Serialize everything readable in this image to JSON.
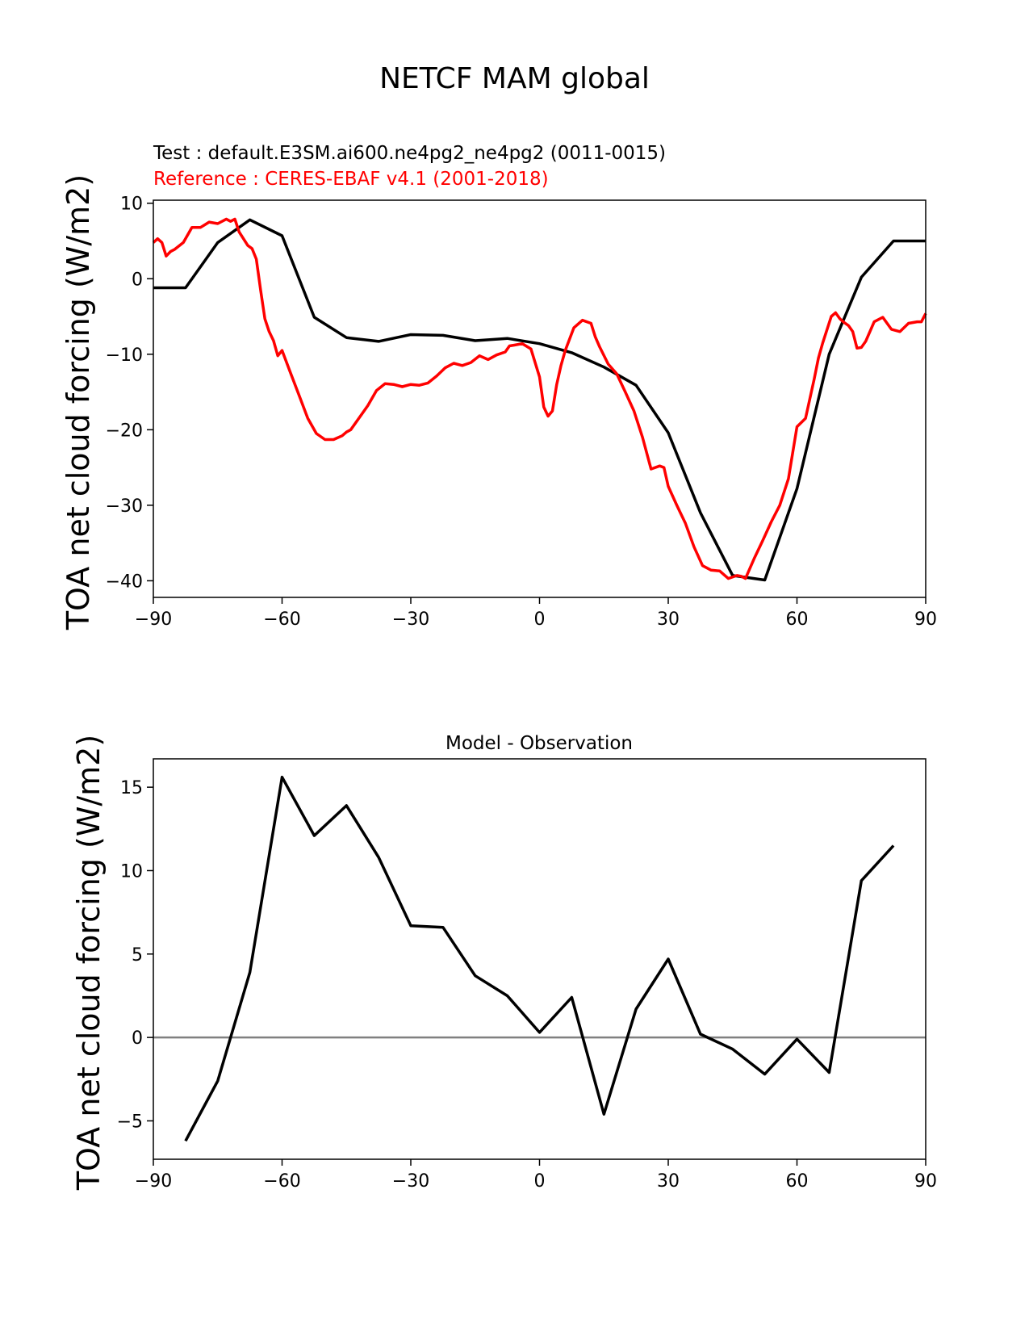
{
  "figure": {
    "title": "NETCF MAM global"
  },
  "chart_data": [
    {
      "type": "line",
      "test_label": "Test : default.E3SM.ai600.ne4pg2_ne4pg2 (0011-0015)",
      "reference_label": "Reference : CERES-EBAF v4.1 (2001-2018)",
      "ylabel": "TOA net cloud forcing (W/m2)",
      "xlabel": "",
      "xlim": [
        -90,
        90
      ],
      "ylim": [
        -42.2,
        10.4
      ],
      "xticks": [
        -90,
        -60,
        -30,
        0,
        30,
        60,
        90
      ],
      "xtick_labels": [
        "−90",
        "−60",
        "−30",
        "0",
        "30",
        "60",
        "90"
      ],
      "yticks": [
        -40,
        -30,
        -20,
        -10,
        0,
        10
      ],
      "ytick_labels": [
        "−40",
        "−30",
        "−20",
        "−10",
        "0",
        "10"
      ],
      "grid": false,
      "series": [
        {
          "name": "Test",
          "color": "#000000",
          "x": [
            -90,
            -82.5,
            -75,
            -67.5,
            -60,
            -52.5,
            -45,
            -37.5,
            -30,
            -22.5,
            -15,
            -7.5,
            0,
            7.5,
            15,
            22.5,
            30,
            37.5,
            45,
            52.5,
            60,
            67.5,
            75,
            82.5,
            90
          ],
          "y": [
            -1.2,
            -1.2,
            4.8,
            7.8,
            5.7,
            -5.1,
            -7.8,
            -8.3,
            -7.4,
            -7.5,
            -8.2,
            -7.9,
            -8.6,
            -9.8,
            -11.7,
            -14.1,
            -20.4,
            -31.0,
            -39.3,
            -39.9,
            -27.8,
            -10.0,
            0.2,
            5.0,
            5.0
          ]
        },
        {
          "name": "Reference",
          "color": "#ff0000",
          "x": [
            -90,
            -89,
            -88,
            -87,
            -86,
            -85,
            -83,
            -81,
            -79,
            -77,
            -75,
            -73,
            -72,
            -71,
            -70,
            -68,
            -67,
            -66,
            -65,
            -64,
            -63,
            -62,
            -61,
            -60,
            -58,
            -56,
            -54,
            -52,
            -50,
            -48,
            -46,
            -45,
            -44,
            -42,
            -40,
            -38,
            -36,
            -34,
            -32,
            -30,
            -28,
            -26,
            -24,
            -22,
            -20,
            -18,
            -16,
            -14,
            -12,
            -10,
            -8,
            -7,
            -6,
            -4,
            -2,
            0,
            1,
            2,
            3,
            4,
            5,
            6,
            8,
            10,
            12,
            13,
            14,
            16,
            18,
            20,
            22,
            24,
            26,
            28,
            29,
            30,
            32,
            34,
            36,
            38,
            40,
            42,
            44,
            46,
            47,
            48,
            50,
            52,
            54,
            56,
            58,
            60,
            62,
            64,
            65,
            66,
            68,
            69,
            70,
            71,
            72,
            73,
            74,
            75,
            76,
            78,
            80,
            82,
            84,
            86,
            88,
            89,
            90
          ],
          "y": [
            4.8,
            5.3,
            4.8,
            3.0,
            3.6,
            3.9,
            4.8,
            6.8,
            6.8,
            7.5,
            7.3,
            7.9,
            7.6,
            7.9,
            6.2,
            4.4,
            4.0,
            2.6,
            -1.5,
            -5.3,
            -7.0,
            -8.2,
            -10.2,
            -9.5,
            -12.5,
            -15.5,
            -18.5,
            -20.5,
            -21.3,
            -21.3,
            -20.8,
            -20.3,
            -20.0,
            -18.4,
            -16.8,
            -14.8,
            -13.9,
            -14.0,
            -14.3,
            -14.0,
            -14.1,
            -13.8,
            -12.9,
            -11.8,
            -11.2,
            -11.5,
            -11.1,
            -10.2,
            -10.7,
            -10.1,
            -9.7,
            -8.9,
            -8.8,
            -8.6,
            -9.3,
            -13.0,
            -17.0,
            -18.2,
            -17.5,
            -14.0,
            -11.5,
            -9.5,
            -6.5,
            -5.5,
            -5.9,
            -7.7,
            -9.0,
            -11.3,
            -12.6,
            -15.0,
            -17.5,
            -21.0,
            -25.2,
            -24.8,
            -25.0,
            -27.5,
            -30.0,
            -32.4,
            -35.5,
            -38.0,
            -38.6,
            -38.7,
            -39.7,
            -39.3,
            -39.4,
            -39.7,
            -37.1,
            -34.7,
            -32.2,
            -30.0,
            -26.5,
            -19.6,
            -18.5,
            -13.3,
            -10.5,
            -8.5,
            -5.0,
            -4.5,
            -5.3,
            -5.8,
            -6.2,
            -7.0,
            -9.2,
            -9.1,
            -8.3,
            -5.7,
            -5.1,
            -6.7,
            -7.0,
            -5.9,
            -5.7,
            -5.7,
            -4.6
          ]
        }
      ]
    },
    {
      "type": "line",
      "title": "Model - Observation",
      "ylabel": "TOA net cloud forcing (W/m2)",
      "xlabel": "",
      "xlim": [
        -90,
        90
      ],
      "ylim": [
        -7.3,
        16.7
      ],
      "xticks": [
        -90,
        -60,
        -30,
        0,
        30,
        60,
        90
      ],
      "xtick_labels": [
        "−90",
        "−60",
        "−30",
        "0",
        "30",
        "60",
        "90"
      ],
      "yticks": [
        -5,
        0,
        5,
        10,
        15
      ],
      "ytick_labels": [
        "−5",
        "0",
        "5",
        "10",
        "15"
      ],
      "zero_line": true,
      "zero_line_color": "#808080",
      "grid": false,
      "series": [
        {
          "name": "Model - Observation",
          "color": "#000000",
          "x": [
            -82.5,
            -75,
            -67.5,
            -60,
            -52.5,
            -45,
            -37.5,
            -30,
            -22.5,
            -15,
            -7.5,
            0,
            7.5,
            15,
            22.5,
            30,
            37.5,
            45,
            52.5,
            60,
            67.5,
            75,
            82.5
          ],
          "y": [
            -6.2,
            -2.6,
            3.9,
            15.6,
            12.1,
            13.9,
            10.8,
            6.7,
            6.6,
            3.7,
            2.5,
            0.3,
            2.4,
            -4.6,
            1.7,
            4.7,
            0.2,
            -0.7,
            -2.2,
            -0.1,
            -2.1,
            9.4,
            11.5
          ]
        }
      ]
    }
  ]
}
